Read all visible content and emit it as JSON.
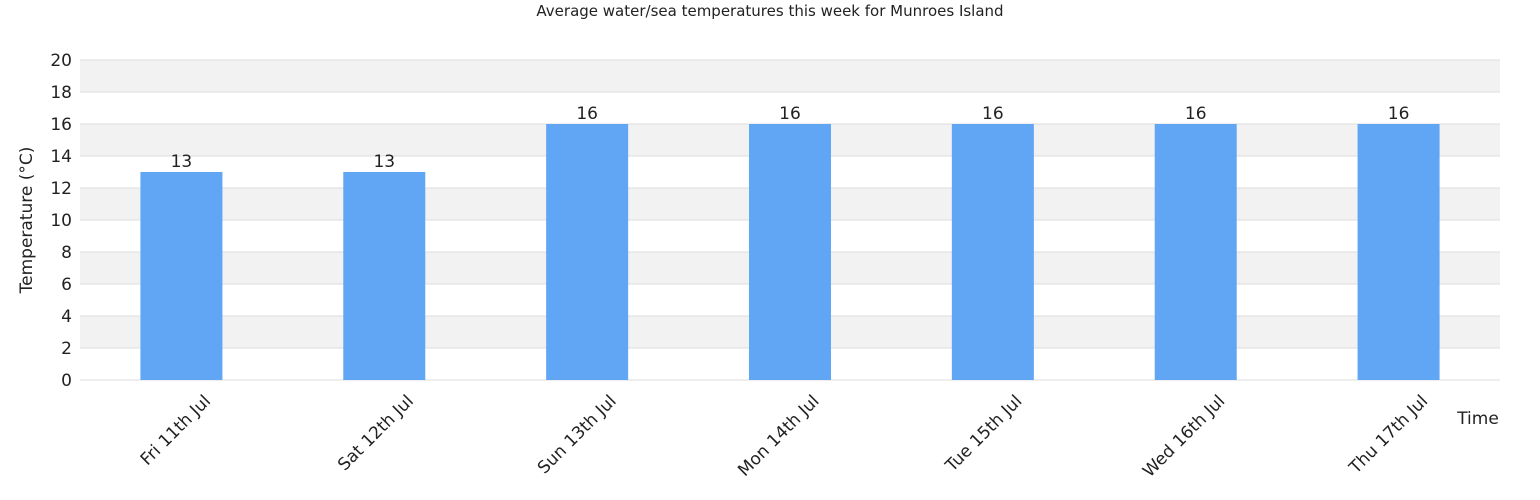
{
  "chart_data": {
    "type": "bar",
    "title": "Average water/sea temperatures this week for Munroes Island",
    "x_label": "Time",
    "y_label": "Temperature (°C)",
    "categories": [
      "Fri 11th Jul",
      "Sat 12th Jul",
      "Sun 13th Jul",
      "Mon 14th Jul",
      "Tue 15th Jul",
      "Wed 16th Jul",
      "Thu 17th Jul"
    ],
    "values": [
      13,
      13,
      16,
      16,
      16,
      16,
      16
    ],
    "color": "#60a6f4",
    "ylim": [
      0,
      20
    ],
    "yticks": [
      0,
      2,
      4,
      6,
      8,
      10,
      12,
      14,
      16,
      18,
      20
    ],
    "grid": true
  }
}
